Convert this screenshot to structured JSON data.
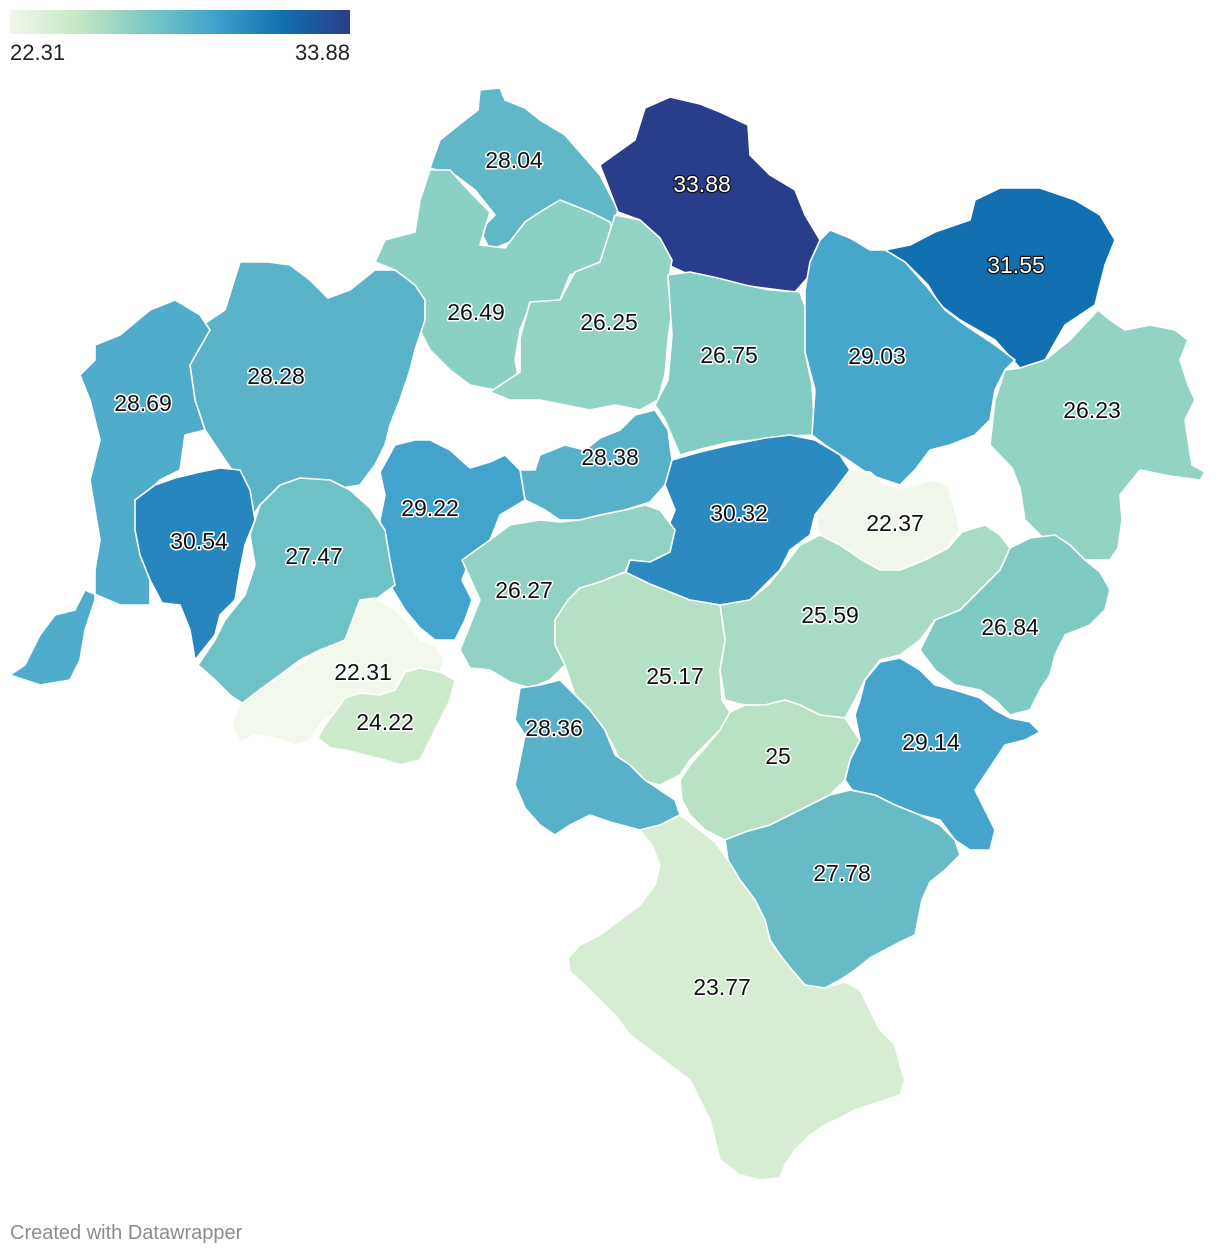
{
  "legend": {
    "min_label": "22.31",
    "max_label": "33.88",
    "gradient_colors": [
      "#f2f8ec",
      "#c5e7c5",
      "#7ccac3",
      "#41a2cc",
      "#1270b1",
      "#283e8a"
    ]
  },
  "footer": {
    "credit": "Created with Datawrapper"
  },
  "map_data": {
    "type": "choropleth",
    "scale": {
      "min": 22.31,
      "max": 33.88
    },
    "regions": [
      {
        "label": "28.04",
        "value": 28.04
      },
      {
        "label": "33.88",
        "value": 33.88
      },
      {
        "label": "31.55",
        "value": 31.55
      },
      {
        "label": "26.49",
        "value": 26.49
      },
      {
        "label": "26.25",
        "value": 26.25
      },
      {
        "label": "26.75",
        "value": 26.75
      },
      {
        "label": "29.03",
        "value": 29.03
      },
      {
        "label": "26.23",
        "value": 26.23
      },
      {
        "label": "28.28",
        "value": 28.28
      },
      {
        "label": "28.69",
        "value": 28.69
      },
      {
        "label": "28.38",
        "value": 28.38
      },
      {
        "label": "29.22",
        "value": 29.22
      },
      {
        "label": "30.32",
        "value": 30.32
      },
      {
        "label": "22.37",
        "value": 22.37
      },
      {
        "label": "30.54",
        "value": 30.54
      },
      {
        "label": "27.47",
        "value": 27.47
      },
      {
        "label": "26.27",
        "value": 26.27
      },
      {
        "label": "25.59",
        "value": 25.59
      },
      {
        "label": "26.84",
        "value": 26.84
      },
      {
        "label": "22.31",
        "value": 22.31
      },
      {
        "label": "25.17",
        "value": 25.17
      },
      {
        "label": "24.22",
        "value": 24.22
      },
      {
        "label": "28.36",
        "value": 28.36
      },
      {
        "label": "25",
        "value": 25
      },
      {
        "label": "29.14",
        "value": 29.14
      },
      {
        "label": "27.78",
        "value": 27.78
      },
      {
        "label": "23.77",
        "value": 23.77
      }
    ]
  }
}
